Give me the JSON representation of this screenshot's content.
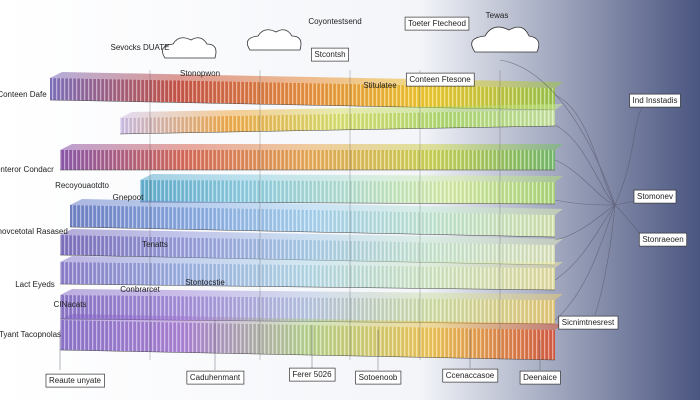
{
  "labels": [
    "Coyontestsend",
    "Toeter Ftecheod",
    "Tewas",
    "Sevocks DUATE",
    "Stonopwon",
    "Conteen Dafe",
    "Conteror Condacr",
    "Recoyouaotdto",
    "Snovcetotal Rasased",
    "Gnepoot",
    "Tenatts",
    "Lact Eyeds",
    "CINacats",
    "Tyant Tacopnolas",
    "Conbrarcet",
    "Stontocstie",
    "Reaute unyate",
    "Caduhenmant",
    "Ferer 5026",
    "Sotoenoob",
    "Ccenaccasoe",
    "Deenaice",
    "Ind Insstadis",
    "Stomonev",
    "Stonraeoen",
    "Sicnimtnesrest",
    "Stcontsh",
    "Conteen Ftesone",
    "Stitulatee"
  ]
}
